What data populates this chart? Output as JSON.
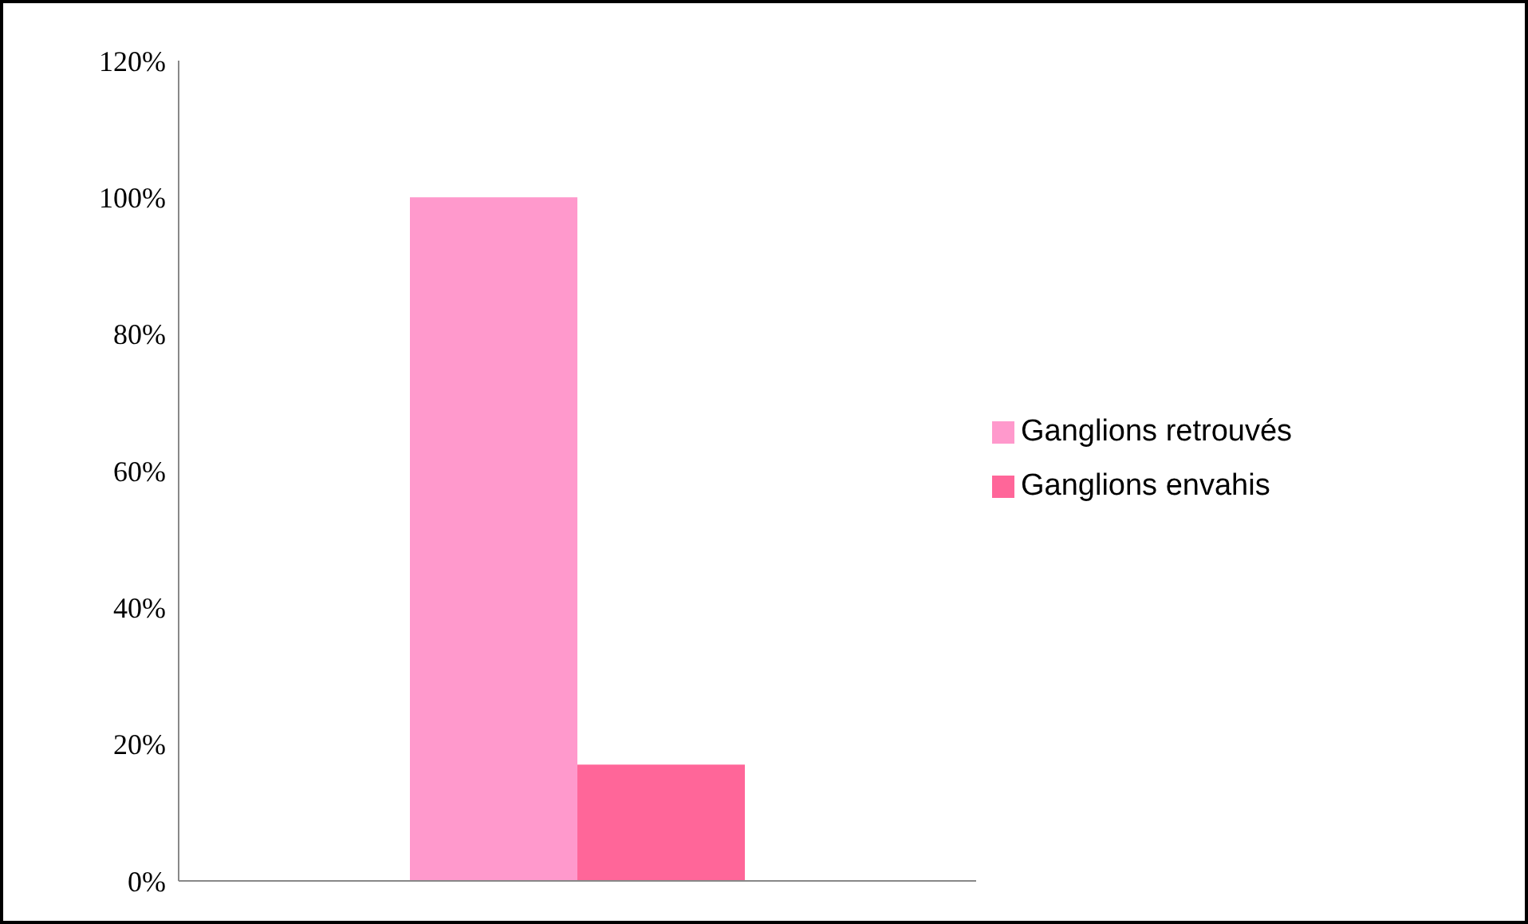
{
  "chart_data": {
    "type": "bar",
    "categories": [
      null
    ],
    "series": [
      {
        "name": "Ganglions retrouvés",
        "color": "#ff99cc",
        "values": [
          100
        ]
      },
      {
        "name": "Ganglions envahis",
        "color": "#ff6699",
        "values": [
          17
        ]
      }
    ],
    "ylim": [
      0,
      120
    ],
    "yticks": [
      {
        "value": 0,
        "label": "0%"
      },
      {
        "value": 20,
        "label": "20%"
      },
      {
        "value": 40,
        "label": "40%"
      },
      {
        "value": 60,
        "label": "60%"
      },
      {
        "value": 80,
        "label": "80%"
      },
      {
        "value": 100,
        "label": "100%"
      },
      {
        "value": 120,
        "label": "120%"
      }
    ],
    "grid": false,
    "legend": "right"
  }
}
